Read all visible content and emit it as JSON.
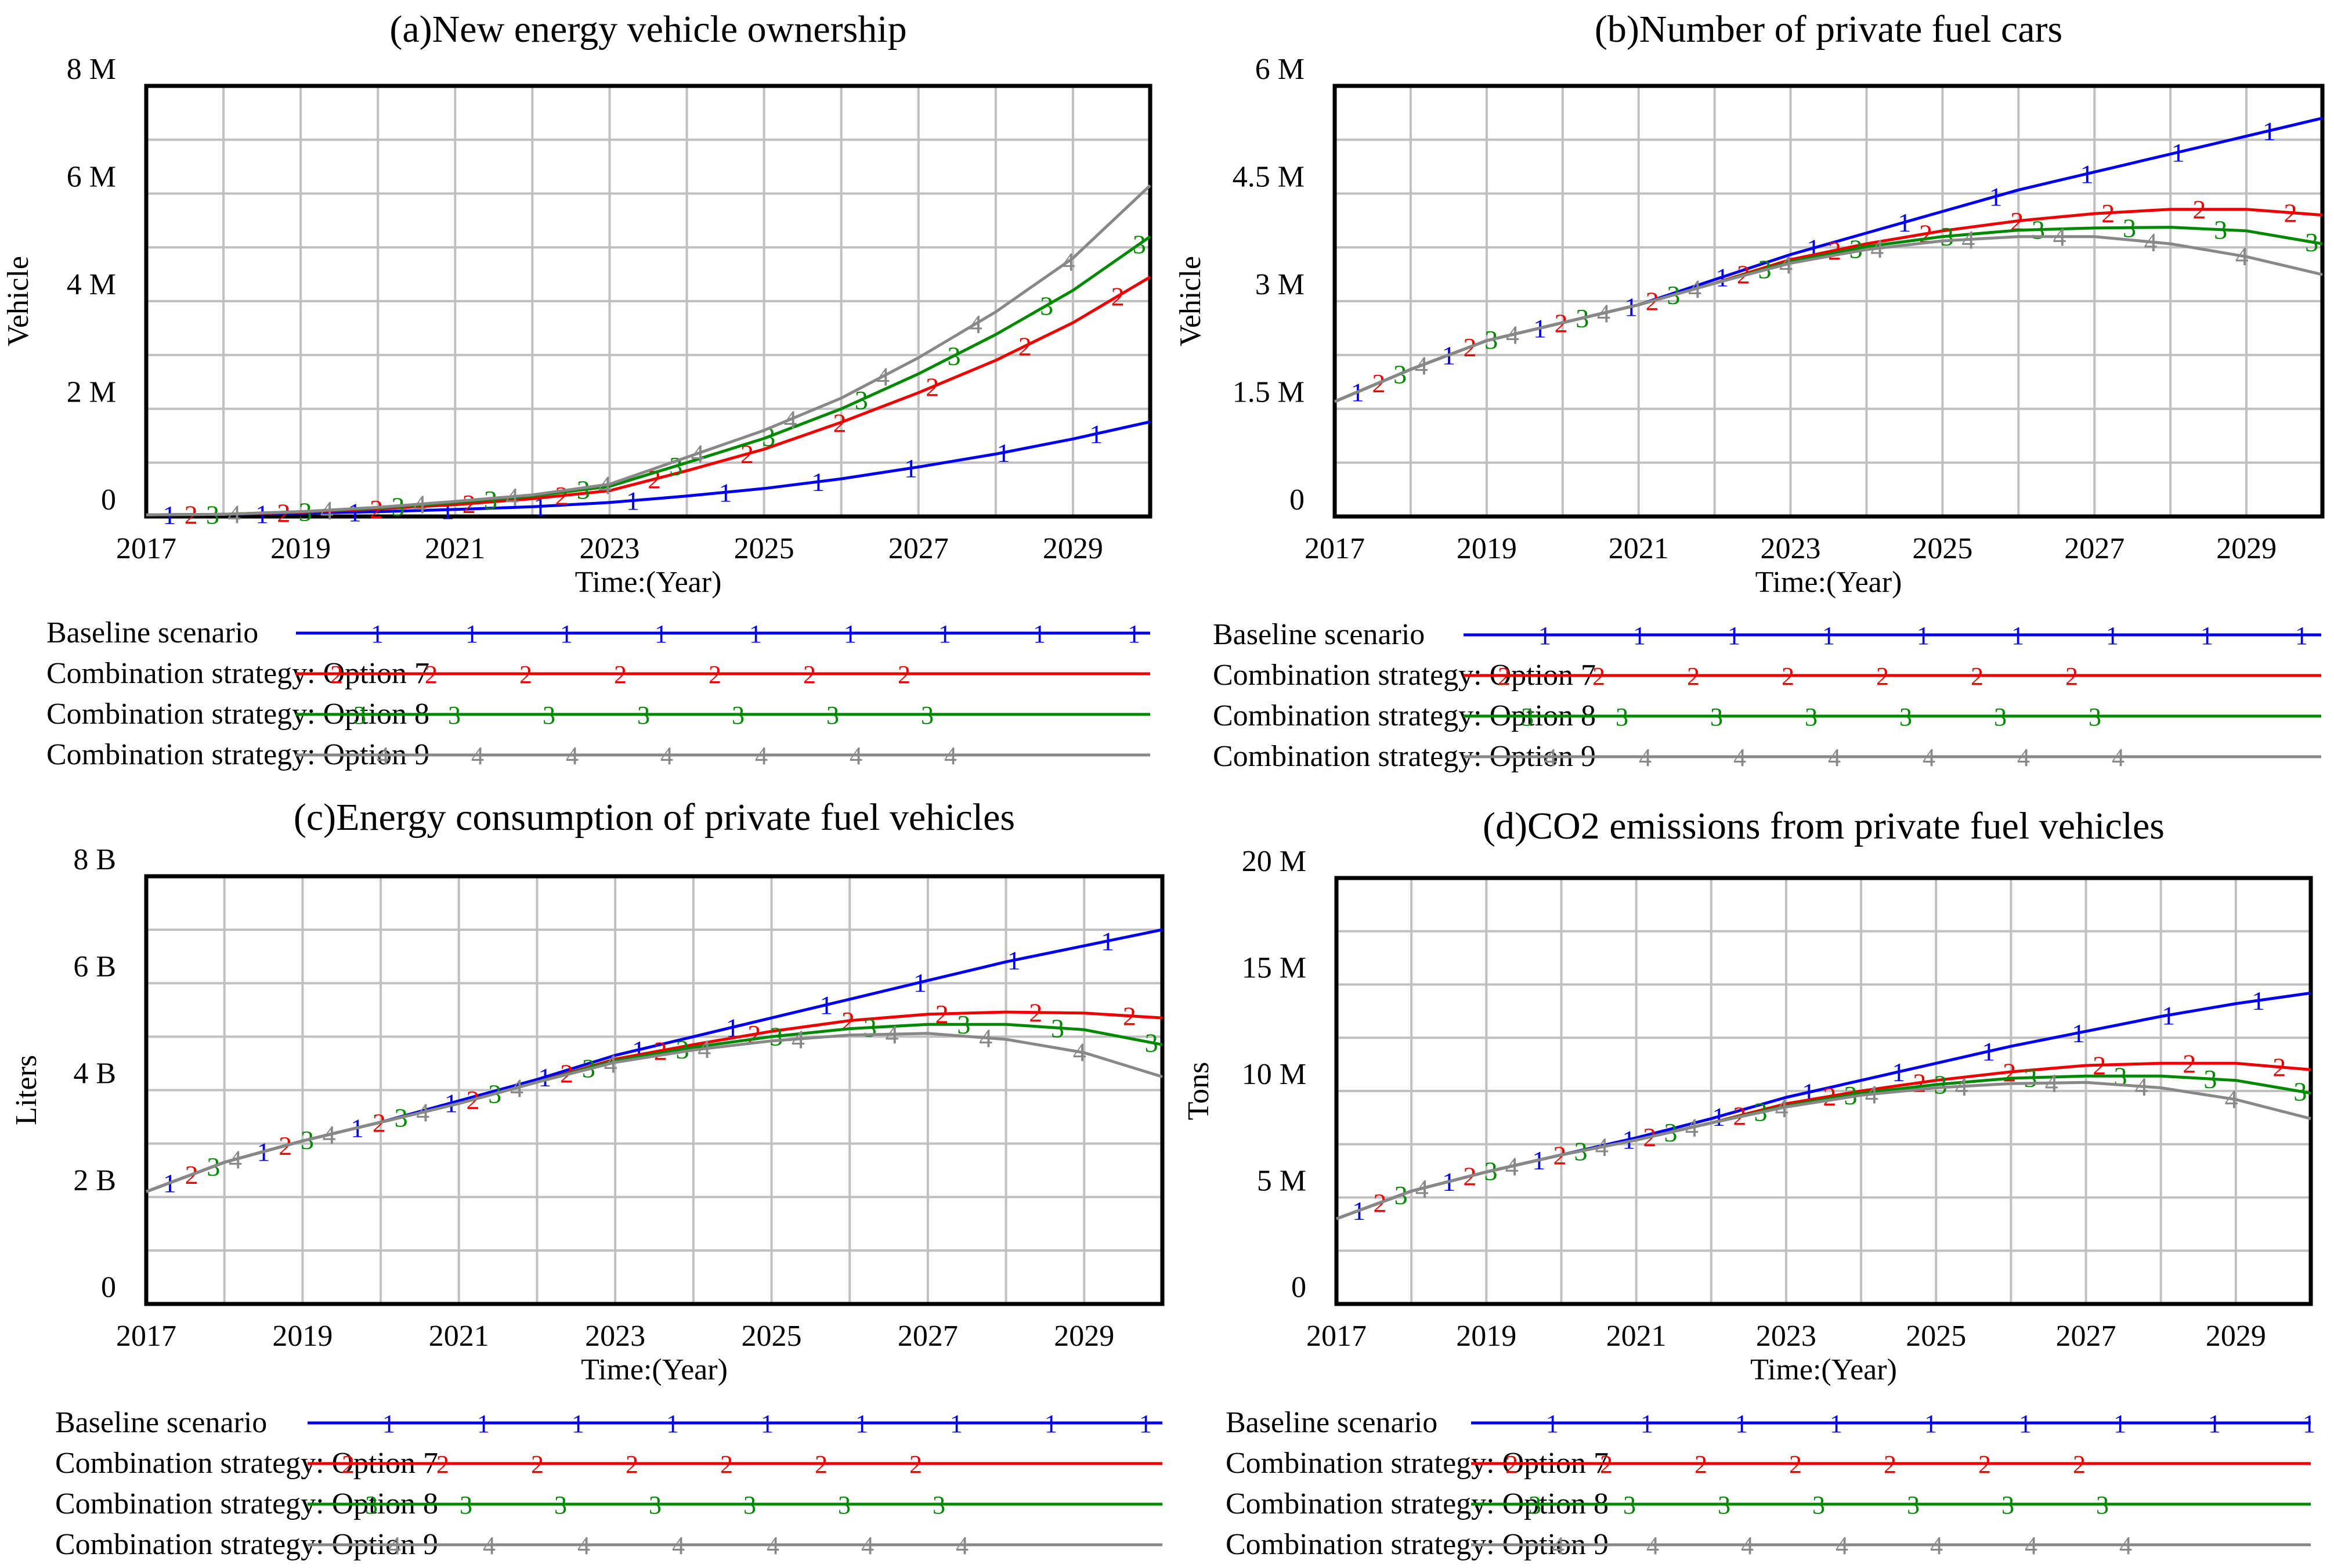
{
  "colors": {
    "baseline": "#0000ee",
    "option7": "#ee0000",
    "option8": "#008800",
    "option9": "#888888",
    "grid": "#c0c0c0",
    "frame": "#000000"
  },
  "chart_data": [
    {
      "id": "a",
      "type": "line",
      "title": "(a)New energy vehicle ownership",
      "xlabel": "Time:(Year)",
      "ylabel": "Vehicle",
      "xlim": [
        2017,
        2030
      ],
      "ylim": [
        0,
        8000000
      ],
      "grid": true,
      "x_ticks": [
        "2017",
        "2019",
        "2021",
        "2023",
        "2025",
        "2027",
        "2029"
      ],
      "y_ticks": [
        {
          "v": 0,
          "label": "0"
        },
        {
          "v": 2000000,
          "label": "2 M"
        },
        {
          "v": 4000000,
          "label": "4 M"
        },
        {
          "v": 6000000,
          "label": "6 M"
        },
        {
          "v": 8000000,
          "label": "8 M"
        }
      ],
      "x": [
        2017,
        2018,
        2019,
        2020,
        2021,
        2022,
        2023,
        2024,
        2025,
        2026,
        2027,
        2028,
        2029,
        2030
      ],
      "series": [
        {
          "name": "Baseline scenario",
          "marker": "1",
          "color_key": "baseline",
          "values": [
            30000,
            40000,
            60000,
            90000,
            130000,
            180000,
            260000,
            380000,
            520000,
            700000,
            920000,
            1160000,
            1440000,
            1760000
          ]
        },
        {
          "name": "Combination strategy: Option 7",
          "marker": "2",
          "color_key": "option7",
          "values": [
            30000,
            40000,
            80000,
            140000,
            220000,
            330000,
            480000,
            850000,
            1250000,
            1750000,
            2300000,
            2900000,
            3600000,
            4450000
          ]
        },
        {
          "name": "Combination strategy: Option 8",
          "marker": "3",
          "color_key": "option8",
          "values": [
            30000,
            40000,
            90000,
            160000,
            260000,
            380000,
            560000,
            1000000,
            1450000,
            2000000,
            2650000,
            3380000,
            4200000,
            5200000
          ]
        },
        {
          "name": "Combination strategy: Option 9",
          "marker": "4",
          "color_key": "option9",
          "values": [
            30000,
            40000,
            90000,
            170000,
            280000,
            400000,
            600000,
            1100000,
            1600000,
            2200000,
            2950000,
            3800000,
            4800000,
            6150000
          ]
        }
      ]
    },
    {
      "id": "b",
      "type": "line",
      "title": "(b)Number of private fuel cars",
      "xlabel": "Time:(Year)",
      "ylabel": "Vehicle",
      "xlim": [
        2017,
        2030
      ],
      "ylim": [
        0,
        6000000
      ],
      "grid": true,
      "x_ticks": [
        "2017",
        "2019",
        "2021",
        "2023",
        "2025",
        "2027",
        "2029"
      ],
      "y_ticks": [
        {
          "v": 0,
          "label": "0"
        },
        {
          "v": 1500000,
          "label": "1.5 M"
        },
        {
          "v": 3000000,
          "label": "3 M"
        },
        {
          "v": 4500000,
          "label": "4.5 M"
        },
        {
          "v": 6000000,
          "label": "6 M"
        }
      ],
      "x": [
        2017,
        2018,
        2019,
        2020,
        2021,
        2022,
        2023,
        2024,
        2025,
        2026,
        2027,
        2028,
        2029,
        2030
      ],
      "series": [
        {
          "name": "Baseline scenario",
          "marker": "1",
          "color_key": "baseline",
          "values": [
            1600000,
            2050000,
            2450000,
            2700000,
            2950000,
            3300000,
            3650000,
            3950000,
            4250000,
            4550000,
            4800000,
            5050000,
            5300000,
            5550000
          ]
        },
        {
          "name": "Combination strategy: Option 7",
          "marker": "2",
          "color_key": "option7",
          "values": [
            1600000,
            2050000,
            2450000,
            2700000,
            2950000,
            3250000,
            3580000,
            3800000,
            3980000,
            4120000,
            4220000,
            4280000,
            4280000,
            4200000
          ]
        },
        {
          "name": "Combination strategy: Option 8",
          "marker": "3",
          "color_key": "option8",
          "values": [
            1600000,
            2050000,
            2450000,
            2700000,
            2950000,
            3250000,
            3550000,
            3760000,
            3900000,
            3990000,
            4020000,
            4030000,
            3980000,
            3800000
          ]
        },
        {
          "name": "Combination strategy: Option 9",
          "marker": "4",
          "color_key": "option9",
          "values": [
            1600000,
            2050000,
            2450000,
            2700000,
            2950000,
            3250000,
            3530000,
            3720000,
            3840000,
            3900000,
            3900000,
            3800000,
            3620000,
            3370000
          ]
        }
      ]
    },
    {
      "id": "c",
      "type": "line",
      "title": "(c)Energy consumption of private fuel vehicles",
      "xlabel": "Time:(Year)",
      "ylabel": "Liters",
      "xlim": [
        2017,
        2030
      ],
      "ylim": [
        0,
        8000000000
      ],
      "grid": true,
      "x_ticks": [
        "2017",
        "2019",
        "2021",
        "2023",
        "2025",
        "2027",
        "2029"
      ],
      "y_ticks": [
        {
          "v": 0,
          "label": "0"
        },
        {
          "v": 2000000000,
          "label": "2 B"
        },
        {
          "v": 4000000000,
          "label": "4 B"
        },
        {
          "v": 6000000000,
          "label": "6 B"
        },
        {
          "v": 8000000000,
          "label": "8 B"
        }
      ],
      "x": [
        2017,
        2018,
        2019,
        2020,
        2021,
        2022,
        2023,
        2024,
        2025,
        2026,
        2027,
        2028,
        2029,
        2030
      ],
      "series": [
        {
          "name": "Baseline scenario",
          "marker": "1",
          "color_key": "baseline",
          "values": [
            2100000000,
            2650000000,
            3050000000,
            3400000000,
            3800000000,
            4200000000,
            4650000000,
            5000000000,
            5350000000,
            5700000000,
            6050000000,
            6400000000,
            6700000000,
            7000000000
          ]
        },
        {
          "name": "Combination strategy: Option 7",
          "marker": "2",
          "color_key": "option7",
          "values": [
            2100000000,
            2650000000,
            3050000000,
            3400000000,
            3750000000,
            4150000000,
            4580000000,
            4850000000,
            5100000000,
            5300000000,
            5420000000,
            5460000000,
            5440000000,
            5350000000
          ]
        },
        {
          "name": "Combination strategy: Option 8",
          "marker": "3",
          "color_key": "option8",
          "values": [
            2100000000,
            2650000000,
            3050000000,
            3400000000,
            3750000000,
            4150000000,
            4550000000,
            4800000000,
            5000000000,
            5150000000,
            5230000000,
            5230000000,
            5130000000,
            4850000000
          ]
        },
        {
          "name": "Combination strategy: Option 9",
          "marker": "4",
          "color_key": "option9",
          "values": [
            2100000000,
            2650000000,
            3050000000,
            3400000000,
            3750000000,
            4150000000,
            4520000000,
            4750000000,
            4920000000,
            5030000000,
            5060000000,
            4950000000,
            4700000000,
            4250000000
          ]
        }
      ]
    },
    {
      "id": "d",
      "type": "line",
      "title": "(d)CO2 emissions from private fuel vehicles",
      "xlabel": "Time:(Year)",
      "ylabel": "Tons",
      "xlim": [
        2017,
        2030
      ],
      "ylim": [
        0,
        20000000
      ],
      "grid": true,
      "x_ticks": [
        "2017",
        "2019",
        "2021",
        "2023",
        "2025",
        "2027",
        "2029"
      ],
      "y_ticks": [
        {
          "v": 0,
          "label": "0"
        },
        {
          "v": 5000000,
          "label": "5 M"
        },
        {
          "v": 10000000,
          "label": "10 M"
        },
        {
          "v": 15000000,
          "label": "15 M"
        },
        {
          "v": 20000000,
          "label": "20 M"
        }
      ],
      "x": [
        2017,
        2018,
        2019,
        2020,
        2021,
        2022,
        2023,
        2024,
        2025,
        2026,
        2027,
        2028,
        2029,
        2030
      ],
      "series": [
        {
          "name": "Baseline scenario",
          "marker": "1",
          "color_key": "baseline",
          "values": [
            4000000,
            5300000,
            6200000,
            7000000,
            7800000,
            8700000,
            9700000,
            10500000,
            11300000,
            12100000,
            12800000,
            13500000,
            14100000,
            14600000
          ]
        },
        {
          "name": "Combination strategy: Option 7",
          "marker": "2",
          "color_key": "option7",
          "values": [
            4000000,
            5300000,
            6200000,
            7000000,
            7700000,
            8500000,
            9400000,
            10000000,
            10500000,
            10900000,
            11200000,
            11300000,
            11300000,
            11000000
          ]
        },
        {
          "name": "Combination strategy: Option 8",
          "marker": "3",
          "color_key": "option8",
          "values": [
            4000000,
            5300000,
            6200000,
            7000000,
            7700000,
            8500000,
            9300000,
            9900000,
            10300000,
            10600000,
            10700000,
            10700000,
            10500000,
            9900000
          ]
        },
        {
          "name": "Combination strategy: Option 9",
          "marker": "4",
          "color_key": "option9",
          "values": [
            4000000,
            5300000,
            6200000,
            7000000,
            7700000,
            8500000,
            9250000,
            9800000,
            10150000,
            10350000,
            10400000,
            10150000,
            9600000,
            8700000
          ]
        }
      ]
    }
  ]
}
